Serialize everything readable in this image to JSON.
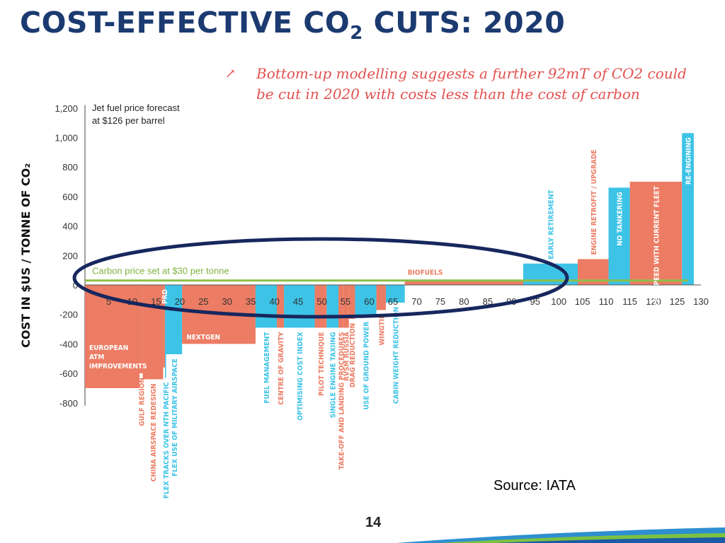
{
  "slide": {
    "title_pre": "COST-EFFECTIVE CO",
    "title_sub": "2",
    "title_post": " CUTS: 2020",
    "callout_arrow": "↗",
    "callout": "Bottom-up modelling suggests a further 92mT of CO2 could be cut in 2020 with costs less than the cost of carbon",
    "source": "Source: IATA",
    "page_number": "14"
  },
  "colors": {
    "bar_salmon": "#ec7c63",
    "bar_blue": "#3cc3e6",
    "carbon_line": "#8dc04a",
    "ellipse": "#17275e",
    "axis_text": "#333333",
    "ylabel": "#111111"
  },
  "chart_data": {
    "type": "bar",
    "title": "",
    "ylabel": "COST IN $US / TONNE OF CO₂",
    "xlabel": "",
    "xlim": [
      0,
      130
    ],
    "ylim": [
      -800,
      1200
    ],
    "xticks": [
      5,
      10,
      15,
      20,
      25,
      30,
      35,
      40,
      45,
      50,
      55,
      60,
      65,
      70,
      75,
      80,
      85,
      90,
      95,
      100,
      105,
      110,
      115,
      120,
      125,
      130
    ],
    "yticks": [
      -800,
      -600,
      -400,
      -200,
      0,
      200,
      400,
      600,
      800,
      1000,
      1200
    ],
    "ytick_labels": [
      "-800",
      "-600",
      "-400",
      "-200",
      "0",
      "200",
      "400",
      "600",
      "800",
      "1,000",
      "1,200"
    ],
    "legend_note": "Jet fuel price forecast at $126 per barrel",
    "carbon_price": {
      "value": 30,
      "label": "Carbon price set at $30 per tonne"
    },
    "bars": [
      {
        "label": "EUROPEAN ATM IMPROVEMENTS",
        "x0": 0,
        "x1": 11.5,
        "value": -700,
        "color": "salmon",
        "label_pos": "inside"
      },
      {
        "label": "GULF REGION",
        "x0": 11.5,
        "x1": 12.2,
        "value": -600,
        "color": "salmon",
        "label_pos": "below"
      },
      {
        "label": "CHINA AIRSPACE REDESIGN",
        "x0": 12.2,
        "x1": 16.5,
        "value": -640,
        "color": "salmon",
        "label_pos": "below"
      },
      {
        "label": "PRD",
        "x0": 16.5,
        "x1": 16.9,
        "value": -560,
        "color": "salmon",
        "label_pos": "inside_top"
      },
      {
        "label": "FLEX TRACKS OVER NTH PACIFIC",
        "x0": 16.9,
        "x1": 17.1,
        "value": -630,
        "color": "blue",
        "label_pos": "below"
      },
      {
        "label": "FLEX USE OF MILITARY AIRSPACE",
        "x0": 17.1,
        "x1": 20.5,
        "value": -470,
        "color": "blue",
        "label_pos": "below"
      },
      {
        "label": "NEXTGEN",
        "x0": 20.5,
        "x1": 36,
        "value": -400,
        "color": "salmon",
        "label_pos": "inside_horizontal"
      },
      {
        "label": "FUEL MANAGEMENT",
        "x0": 36,
        "x1": 40.5,
        "value": -290,
        "color": "blue",
        "label_pos": "below"
      },
      {
        "label": "CENTRE OF GRAVITY",
        "x0": 40.5,
        "x1": 42,
        "value": -290,
        "color": "salmon",
        "label_pos": "below"
      },
      {
        "label": "OPTIMISING COST INDEX",
        "x0": 42,
        "x1": 48.5,
        "value": -290,
        "color": "blue",
        "label_pos": "below"
      },
      {
        "label": "PILOT TECHNIQUE",
        "x0": 48.5,
        "x1": 51,
        "value": -290,
        "color": "salmon",
        "label_pos": "below"
      },
      {
        "label": "SINGLE ENGINE TAXIING",
        "x0": 51,
        "x1": 53.5,
        "value": -290,
        "color": "blue",
        "label_pos": "below"
      },
      {
        "label": "TAKE-OFF AND LANDING PROCEDURES",
        "x0": 53.5,
        "x1": 54.5,
        "value": -290,
        "color": "salmon",
        "label_pos": "below"
      },
      {
        "label": "RVSM RUSSIA",
        "x0": 54.5,
        "x1": 55.7,
        "value": -290,
        "color": "salmon",
        "label_pos": "below"
      },
      {
        "label": "DRAG REDUCTION",
        "x0": 55.7,
        "x1": 57,
        "value": -230,
        "color": "salmon",
        "label_pos": "below"
      },
      {
        "label": "USE OF GROUND POWER",
        "x0": 57,
        "x1": 61.5,
        "value": -220,
        "color": "blue",
        "label_pos": "below"
      },
      {
        "label": "WINGTIP",
        "x0": 61.5,
        "x1": 63.5,
        "value": -170,
        "color": "salmon",
        "label_pos": "below"
      },
      {
        "label": "CABIN WEIGHT REDUCTION",
        "x0": 63.5,
        "x1": 67.5,
        "value": -120,
        "color": "blue",
        "label_pos": "below"
      },
      {
        "label": "BIOFUELS",
        "x0": 67.5,
        "x1": 92.5,
        "value": 30,
        "color": "salmon",
        "label_pos": "above_horizontal"
      },
      {
        "label": "EARLY RETIREMENT",
        "x0": 92.5,
        "x1": 104,
        "value": 145,
        "color": "blue",
        "label_pos": "above"
      },
      {
        "label": "ENGINE RETROFIT / UPGRADE",
        "x0": 104,
        "x1": 110.5,
        "value": 175,
        "color": "salmon",
        "label_pos": "above"
      },
      {
        "label": "NO TANKERING",
        "x0": 110.5,
        "x1": 115,
        "value": 660,
        "color": "blue",
        "label_pos": "inside_top"
      },
      {
        "label": "REDUCED SPEED WITH CURRENT FLEET",
        "x0": 115,
        "x1": 126,
        "value": 700,
        "color": "salmon",
        "label_pos": "inside_top"
      },
      {
        "label": "RE-ENGINING",
        "x0": 126,
        "x1": 128.5,
        "value": 1030,
        "color": "blue",
        "label_pos": "inside_top"
      }
    ]
  }
}
